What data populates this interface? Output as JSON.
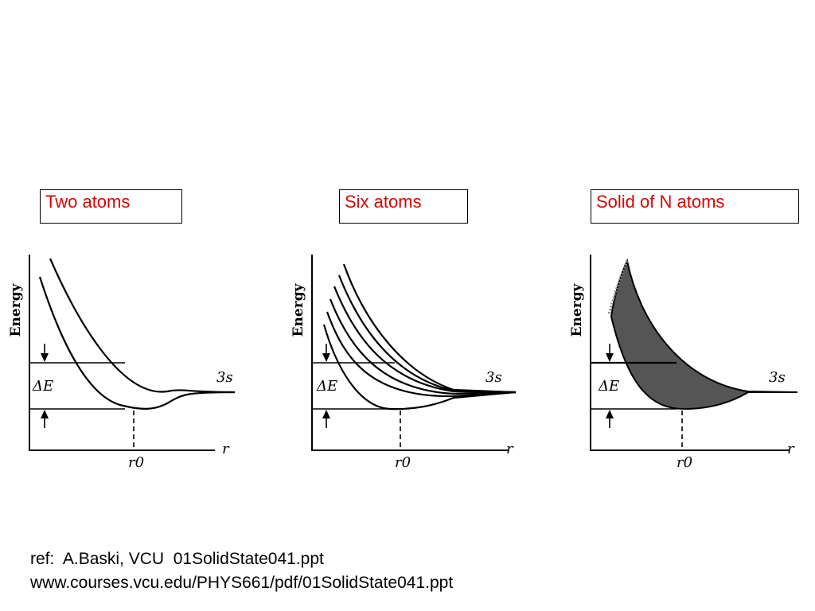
{
  "labels": {
    "two": "Two atoms",
    "six": "Six atoms",
    "solid": "Solid of N atoms"
  },
  "axes": {
    "y_title": "Energy",
    "x_title": "r",
    "level": "3s",
    "gap": "ΔE",
    "equilibrium": "r0"
  },
  "reference": {
    "line1": "ref:  A.Baski, VCU  01SolidState041.ppt",
    "line2": "www.courses.vcu.edu/PHYS661/pdf/01SolidState041.ppt"
  },
  "colors": {
    "label_text": "#e00000",
    "band_fill": "#555555"
  }
}
